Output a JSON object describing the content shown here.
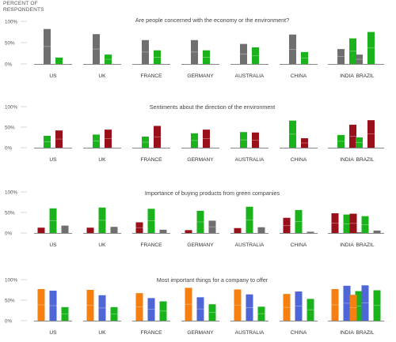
{
  "y_axis_title_lines": [
    "PERCENT OF",
    "RESPONDENTS"
  ],
  "colors": {
    "gray": "#6f6f6f",
    "green": "#1bb31b",
    "darkred": "#990f1a",
    "orange": "#f57f0f",
    "blue": "#4f66d6",
    "axis": "#888888",
    "text": "#333333"
  },
  "chart_data": [
    {
      "type": "bar",
      "title": "Are people concerned with the economy or the environment?",
      "categories": [
        "US",
        "UK",
        "FRANCE",
        "GERMANY",
        "AUSTRALIA",
        "CHINA",
        "INDIA",
        "BRAZIL"
      ],
      "ylim": [
        0,
        100
      ],
      "yticks": [
        "100%",
        "50%",
        "0%"
      ],
      "series": [
        {
          "color": "gray",
          "values": [
            82,
            70,
            56,
            56,
            47,
            69,
            35,
            22
          ]
        },
        {
          "color": "green",
          "values": [
            15,
            22,
            32,
            32,
            39,
            28,
            60,
            75
          ]
        }
      ]
    },
    {
      "type": "bar",
      "title": "Sentiments about the direction of the environment",
      "categories": [
        "US",
        "UK",
        "FRANCE",
        "GERMANY",
        "AUSTRALIA",
        "CHINA",
        "INDIA",
        "BRAZIL"
      ],
      "ylim": [
        0,
        100
      ],
      "yticks": [
        "100%",
        "50%",
        "0%"
      ],
      "series": [
        {
          "color": "green",
          "values": [
            29,
            32,
            27,
            35,
            38,
            66,
            31,
            25
          ]
        },
        {
          "color": "darkred",
          "values": [
            42,
            44,
            53,
            44,
            37,
            23,
            56,
            67
          ]
        }
      ]
    },
    {
      "type": "bar",
      "title": "Importance of buying products from green companies",
      "categories": [
        "US",
        "UK",
        "FRANCE",
        "GERMANY",
        "AUSTRALIA",
        "CHINA",
        "INDIA",
        "BRAZIL"
      ],
      "ylim": [
        0,
        100
      ],
      "yticks": [
        "100%",
        "50%",
        "0%"
      ],
      "series": [
        {
          "colors": [
            "darkred",
            "darkred",
            "darkred",
            "darkred",
            "darkred",
            "darkred",
            "darkred",
            "darkred"
          ],
          "values": [
            13,
            13,
            26,
            7,
            12,
            37,
            48,
            47
          ]
        },
        {
          "colors": [
            "green",
            "green",
            "green",
            "green",
            "green",
            "green",
            "green",
            "green"
          ],
          "values": [
            60,
            62,
            59,
            54,
            64,
            56,
            45,
            41
          ]
        },
        {
          "colors": [
            "gray",
            "gray",
            "gray",
            "gray",
            "gray",
            "gray",
            "gray",
            "gray"
          ],
          "values": [
            18,
            15,
            8,
            30,
            14,
            3,
            2,
            6
          ]
        }
      ]
    },
    {
      "type": "bar",
      "title": "Most important things for a company to offer",
      "categories": [
        "US",
        "UK",
        "FRANCE",
        "GERMANY",
        "AUSTRALIA",
        "CHINA",
        "INDIA",
        "BRAZIL"
      ],
      "ylim": [
        0,
        100
      ],
      "yticks": [
        "100%",
        "50%",
        "0%"
      ],
      "series": [
        {
          "color": "orange",
          "values": [
            77,
            75,
            67,
            80,
            76,
            65,
            77,
            63
          ]
        },
        {
          "color": "blue",
          "values": [
            73,
            62,
            55,
            57,
            64,
            71,
            85,
            86
          ]
        },
        {
          "color": "green",
          "values": [
            33,
            33,
            47,
            40,
            34,
            53,
            72,
            74
          ]
        }
      ]
    }
  ]
}
